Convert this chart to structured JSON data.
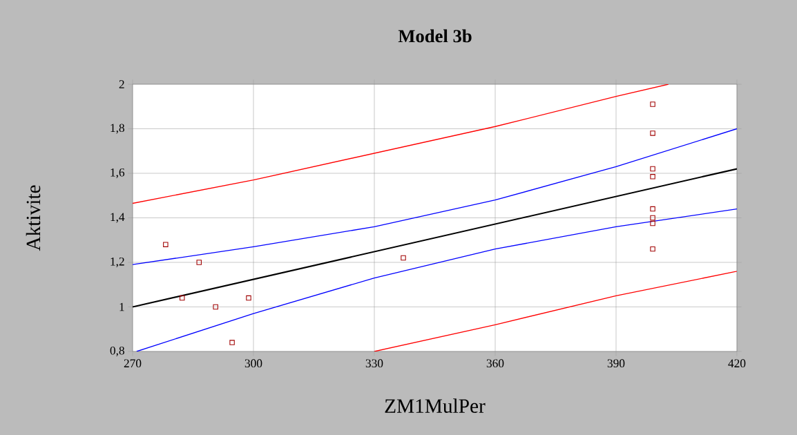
{
  "chart_data": {
    "type": "scatter",
    "title": "Model 3b",
    "xlabel": "ZM1MulPer",
    "ylabel": "Aktivite",
    "xlim": [
      270,
      420
    ],
    "ylim": [
      0.8,
      2
    ],
    "xticks": [
      270,
      300,
      330,
      360,
      390,
      420
    ],
    "yticks": [
      {
        "value": 0.8,
        "label": "0,8"
      },
      {
        "value": 1,
        "label": "1"
      },
      {
        "value": 1.2,
        "label": "1,2"
      },
      {
        "value": 1.4,
        "label": "1,4"
      },
      {
        "value": 1.6,
        "label": "1,6"
      },
      {
        "value": 1.8,
        "label": "1,8"
      },
      {
        "value": 2,
        "label": "2"
      }
    ],
    "grid": true,
    "series": [
      {
        "type": "scatter",
        "marker": "square",
        "color": "#a00000",
        "x": [
          278.2,
          282.3,
          286.5,
          290.6,
          294.7,
          298.8,
          337.2,
          399.1,
          399.1,
          399.1,
          399.1,
          399.1,
          399.1,
          399.1,
          399.1
        ],
        "values": [
          1.28,
          1.04,
          1.2,
          1.0,
          0.84,
          1.04,
          1.22,
          1.91,
          1.78,
          1.62,
          1.585,
          1.44,
          1.4,
          1.375,
          1.26
        ]
      },
      {
        "type": "line",
        "marker": "none",
        "line_style": "solid",
        "color": "#000000",
        "x": [
          270,
          420
        ],
        "values": [
          1.0,
          1.62
        ]
      },
      {
        "type": "line",
        "marker": "none",
        "line_style": "solid",
        "color": "#0000ff",
        "x": [
          270,
          300,
          330,
          360,
          390,
          420
        ],
        "values": [
          1.19,
          1.27,
          1.36,
          1.48,
          1.63,
          1.8
        ]
      },
      {
        "type": "line",
        "marker": "none",
        "line_style": "solid",
        "color": "#0000ff",
        "x": [
          271,
          300,
          330,
          360,
          390,
          420
        ],
        "values": [
          0.8,
          0.97,
          1.13,
          1.26,
          1.36,
          1.44
        ]
      },
      {
        "type": "line",
        "marker": "none",
        "line_style": "solid",
        "color": "#ff0000",
        "x": [
          270,
          300,
          330,
          360,
          390,
          403
        ],
        "values": [
          1.465,
          1.57,
          1.69,
          1.81,
          1.945,
          2.0
        ]
      },
      {
        "type": "line",
        "marker": "none",
        "line_style": "solid",
        "color": "#ff0000",
        "x": [
          330,
          360,
          390,
          420
        ],
        "values": [
          0.8,
          0.92,
          1.05,
          1.16
        ]
      }
    ]
  }
}
